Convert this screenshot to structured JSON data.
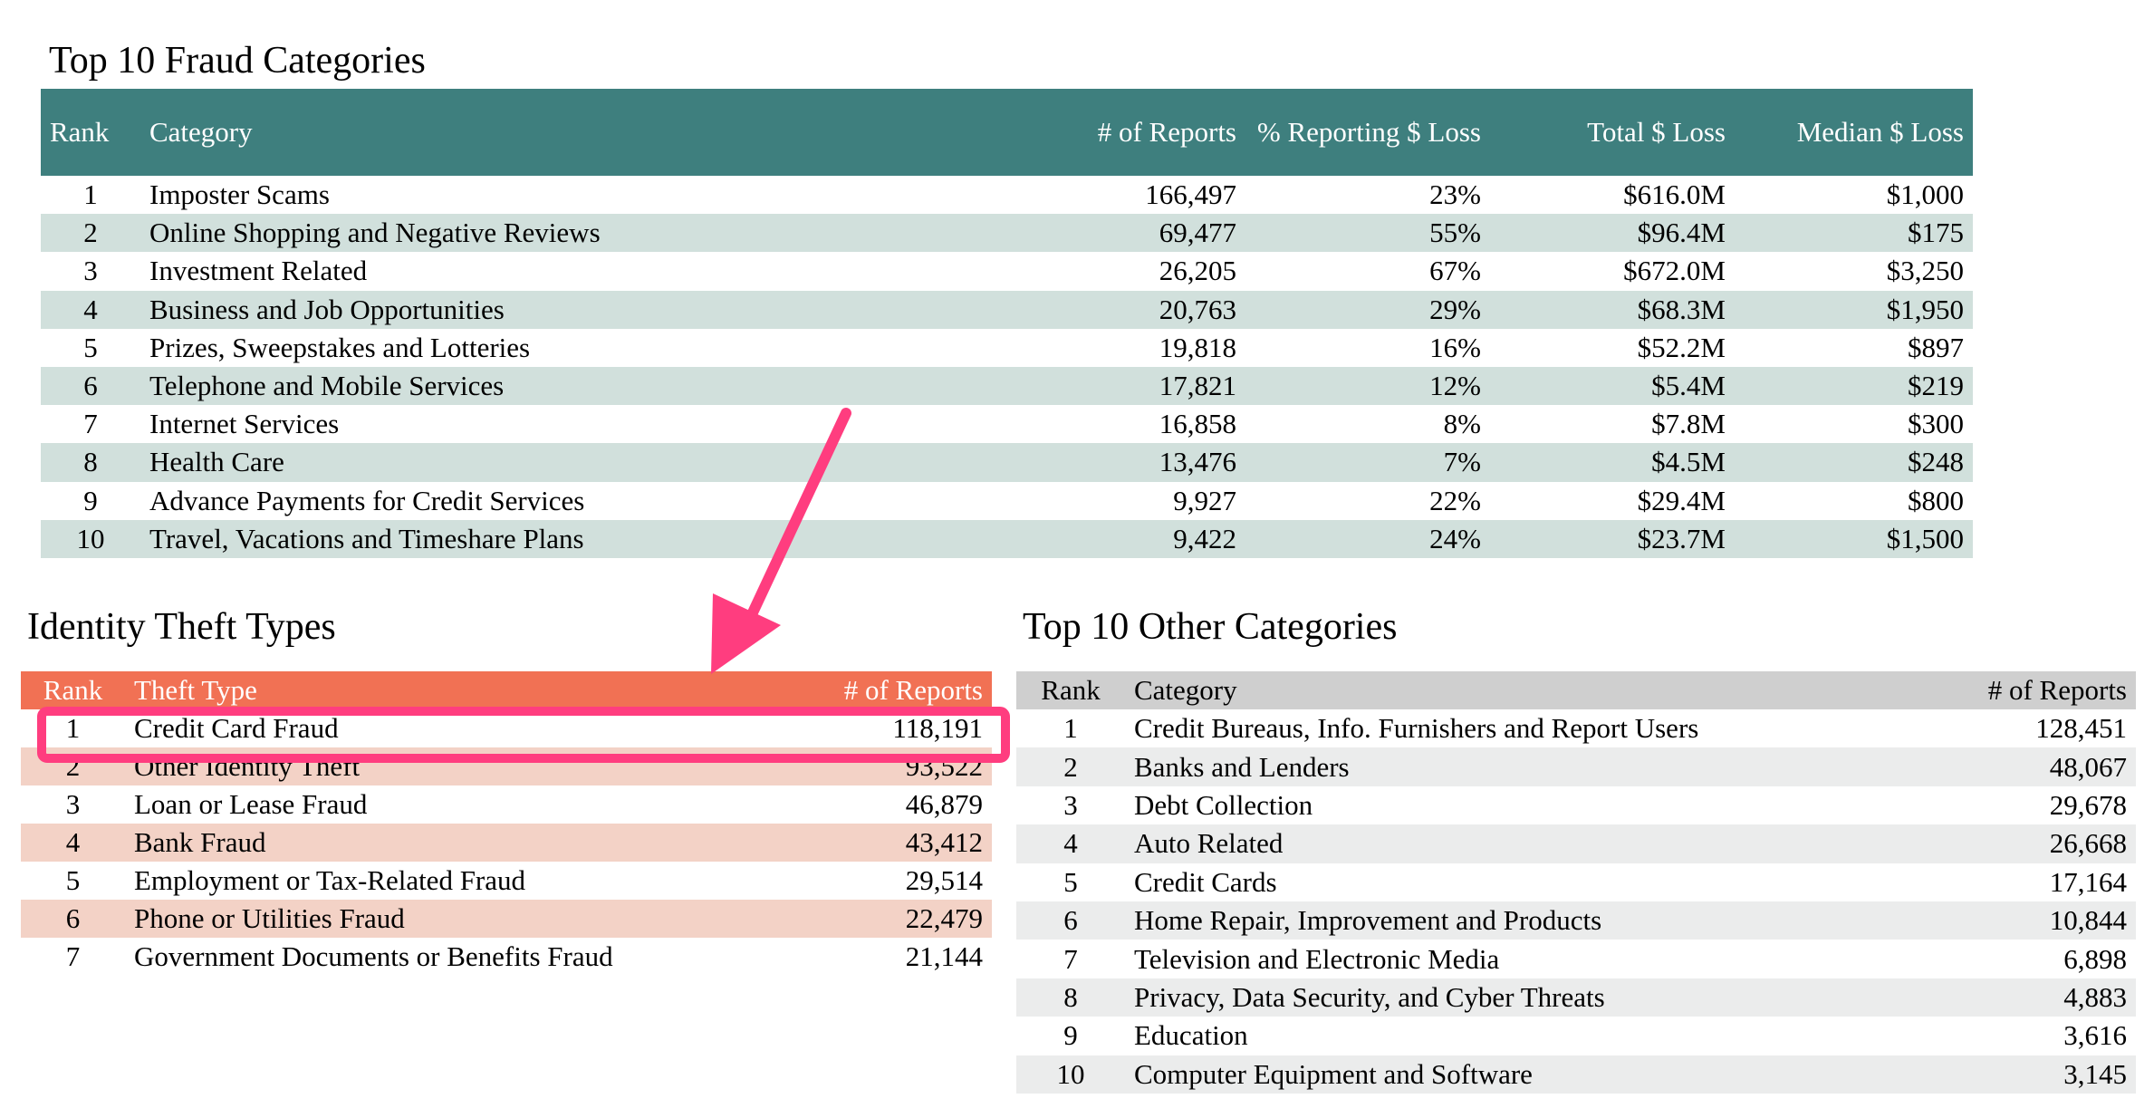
{
  "fraud": {
    "title": "Top 10 Fraud Categories",
    "headers": {
      "rank": "Rank",
      "category": "Category",
      "reports": "# of Reports",
      "pct": "% Reporting $ Loss",
      "total": "Total $ Loss",
      "median": "Median $ Loss"
    },
    "rows": [
      {
        "rank": "1",
        "category": "Imposter Scams",
        "reports": "166,497",
        "pct": "23%",
        "total": "$616.0M",
        "median": "$1,000"
      },
      {
        "rank": "2",
        "category": "Online Shopping and Negative Reviews",
        "reports": "69,477",
        "pct": "55%",
        "total": "$96.4M",
        "median": "$175"
      },
      {
        "rank": "3",
        "category": "Investment Related",
        "reports": "26,205",
        "pct": "67%",
        "total": "$672.0M",
        "median": "$3,250"
      },
      {
        "rank": "4",
        "category": "Business and Job Opportunities",
        "reports": "20,763",
        "pct": "29%",
        "total": "$68.3M",
        "median": "$1,950"
      },
      {
        "rank": "5",
        "category": "Prizes, Sweepstakes and Lotteries",
        "reports": "19,818",
        "pct": "16%",
        "total": "$52.2M",
        "median": "$897"
      },
      {
        "rank": "6",
        "category": "Telephone and Mobile Services",
        "reports": "17,821",
        "pct": "12%",
        "total": "$5.4M",
        "median": "$219"
      },
      {
        "rank": "7",
        "category": "Internet Services",
        "reports": "16,858",
        "pct": "8%",
        "total": "$7.8M",
        "median": "$300"
      },
      {
        "rank": "8",
        "category": "Health Care",
        "reports": "13,476",
        "pct": "7%",
        "total": "$4.5M",
        "median": "$248"
      },
      {
        "rank": "9",
        "category": "Advance Payments for Credit Services",
        "reports": "9,927",
        "pct": "22%",
        "total": "$29.4M",
        "median": "$800"
      },
      {
        "rank": "10",
        "category": "Travel, Vacations and Timeshare Plans",
        "reports": "9,422",
        "pct": "24%",
        "total": "$23.7M",
        "median": "$1,500"
      }
    ]
  },
  "identity": {
    "title": "Identity Theft Types",
    "headers": {
      "rank": "Rank",
      "type": "Theft Type",
      "reports": "# of Reports"
    },
    "rows": [
      {
        "rank": "1",
        "type": "Credit Card Fraud",
        "reports": "118,191"
      },
      {
        "rank": "2",
        "type": "Other Identity Theft",
        "reports": "93,522"
      },
      {
        "rank": "3",
        "type": "Loan or Lease Fraud",
        "reports": "46,879"
      },
      {
        "rank": "4",
        "type": "Bank Fraud",
        "reports": "43,412"
      },
      {
        "rank": "5",
        "type": "Employment or Tax-Related Fraud",
        "reports": "29,514"
      },
      {
        "rank": "6",
        "type": "Phone or Utilities Fraud",
        "reports": "22,479"
      },
      {
        "rank": "7",
        "type": "Government Documents or Benefits Fraud",
        "reports": "21,144"
      }
    ]
  },
  "other": {
    "title": "Top 10 Other Categories",
    "headers": {
      "rank": "Rank",
      "category": "Category",
      "reports": "# of Reports"
    },
    "rows": [
      {
        "rank": "1",
        "category": "Credit Bureaus, Info. Furnishers and Report Users",
        "reports": "128,451"
      },
      {
        "rank": "2",
        "category": "Banks and Lenders",
        "reports": "48,067"
      },
      {
        "rank": "3",
        "category": "Debt Collection",
        "reports": "29,678"
      },
      {
        "rank": "4",
        "category": "Auto Related",
        "reports": "26,668"
      },
      {
        "rank": "5",
        "category": "Credit Cards",
        "reports": "17,164"
      },
      {
        "rank": "6",
        "category": "Home Repair, Improvement and Products",
        "reports": "10,844"
      },
      {
        "rank": "7",
        "category": "Television and Electronic Media",
        "reports": "6,898"
      },
      {
        "rank": "8",
        "category": "Privacy, Data Security, and Cyber Threats",
        "reports": "4,883"
      },
      {
        "rank": "9",
        "category": "Education",
        "reports": "3,616"
      },
      {
        "rank": "10",
        "category": "Computer Equipment and Software",
        "reports": "3,145"
      }
    ]
  },
  "annotation": {
    "color": "#ff3d7f",
    "highlighted_row": "identity.rows.0"
  },
  "colors": {
    "fraud_header": "#3e7f7e",
    "fraud_stripe": "#d1e0dc",
    "identity_header": "#f17154",
    "identity_stripe": "#f3d2c6",
    "other_header": "#cfcfcf",
    "other_stripe": "#ebecec"
  }
}
